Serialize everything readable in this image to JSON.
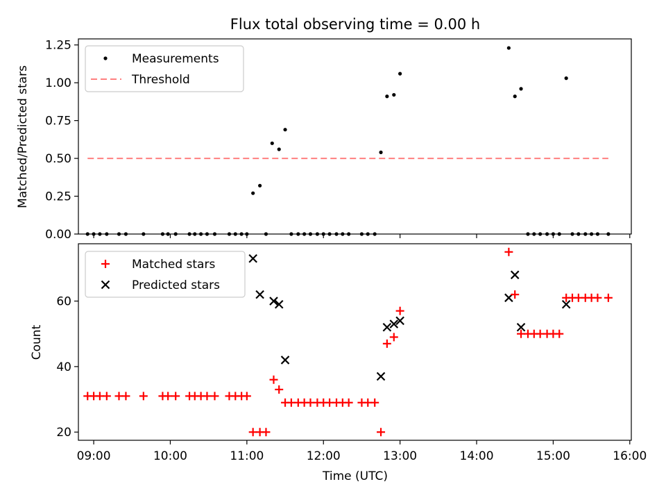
{
  "title": "Flux total observing time = 0.00 h",
  "colors": {
    "matched": "#ff0000",
    "predicted": "#000000",
    "threshold": "#ff7f7f",
    "measure": "#000000"
  },
  "chart_data": [
    {
      "type": "scatter",
      "title": "Flux total observing time = 0.00 h",
      "ylabel": "Matched/Predicted stars",
      "xlabel": "",
      "xlim": [
        8.8,
        16.02
      ],
      "ylim": [
        0,
        1.29
      ],
      "yticks": [
        0,
        0.25,
        0.5,
        0.75,
        1.0,
        1.25
      ],
      "ytick_labels": [
        "0.00",
        "0.25",
        "0.50",
        "0.75",
        "1.00",
        "1.25"
      ],
      "xticks": [
        9,
        10,
        11,
        12,
        13,
        14,
        15,
        16
      ],
      "legend": {
        "position": "upper-left",
        "entries": [
          "Measurements",
          "Threshold"
        ]
      },
      "threshold": {
        "name": "Threshold",
        "x": [
          8.92,
          15.72
        ],
        "y": 0.5
      },
      "series": [
        {
          "name": "Measurements",
          "x": [
            8.92,
            9.0,
            9.08,
            9.17,
            9.33,
            9.42,
            9.65,
            9.9,
            9.97,
            10.07,
            10.25,
            10.32,
            10.4,
            10.48,
            10.58,
            10.77,
            10.85,
            10.93,
            11.0,
            11.08,
            11.17,
            11.25,
            11.33,
            11.42,
            11.5,
            11.58,
            11.67,
            11.75,
            11.83,
            11.92,
            12.0,
            12.08,
            12.17,
            12.25,
            12.33,
            12.5,
            12.58,
            12.67,
            12.75,
            12.83,
            12.92,
            13.0,
            14.42,
            14.5,
            14.58,
            14.67,
            14.75,
            14.83,
            14.92,
            15.0,
            15.08,
            15.17,
            15.25,
            15.33,
            15.42,
            15.5,
            15.58,
            15.72
          ],
          "y": [
            0,
            0,
            0,
            0,
            0,
            0,
            0,
            0,
            0,
            0,
            0,
            0,
            0,
            0,
            0,
            0,
            0,
            0,
            0,
            0.27,
            0.32,
            0,
            0.6,
            0.56,
            0.69,
            0,
            0,
            0,
            0,
            0,
            0,
            0,
            0,
            0,
            0,
            0,
            0,
            0,
            0.54,
            0.91,
            0.92,
            1.06,
            1.23,
            0.91,
            0.96,
            0,
            0,
            0,
            0,
            0,
            0,
            1.03,
            0,
            0,
            0,
            0,
            0,
            0
          ]
        }
      ]
    },
    {
      "type": "scatter",
      "title": "",
      "ylabel": "Count",
      "xlabel": "Time (UTC)",
      "xlim": [
        8.8,
        16.02
      ],
      "ylim": [
        17.5,
        77.5
      ],
      "yticks": [
        20,
        40,
        60
      ],
      "ytick_labels": [
        "20",
        "40",
        "60"
      ],
      "xticks": [
        9,
        10,
        11,
        12,
        13,
        14,
        15,
        16
      ],
      "xtick_labels": [
        "09:00",
        "10:00",
        "11:00",
        "12:00",
        "13:00",
        "14:00",
        "15:00",
        "16:00"
      ],
      "legend": {
        "position": "upper-left",
        "entries": [
          "Matched stars",
          "Predicted stars"
        ]
      },
      "series": [
        {
          "name": "Matched stars",
          "marker": "plus",
          "x": [
            8.92,
            9.0,
            9.08,
            9.17,
            9.33,
            9.42,
            9.65,
            9.9,
            9.97,
            10.07,
            10.25,
            10.32,
            10.4,
            10.48,
            10.58,
            10.77,
            10.85,
            10.93,
            11.0,
            11.08,
            11.17,
            11.25,
            11.35,
            11.42,
            11.5,
            11.58,
            11.67,
            11.75,
            11.83,
            11.92,
            12.0,
            12.08,
            12.17,
            12.25,
            12.33,
            12.5,
            12.58,
            12.67,
            12.75,
            12.83,
            12.92,
            13.0,
            14.42,
            14.5,
            14.58,
            14.67,
            14.75,
            14.83,
            14.92,
            15.0,
            15.08,
            15.17,
            15.25,
            15.33,
            15.42,
            15.5,
            15.58,
            15.72
          ],
          "y": [
            31,
            31,
            31,
            31,
            31,
            31,
            31,
            31,
            31,
            31,
            31,
            31,
            31,
            31,
            31,
            31,
            31,
            31,
            31,
            20,
            20,
            20,
            36,
            33,
            29,
            29,
            29,
            29,
            29,
            29,
            29,
            29,
            29,
            29,
            29,
            29,
            29,
            29,
            20,
            47,
            49,
            57,
            75,
            62,
            50,
            50,
            50,
            50,
            50,
            50,
            50,
            61,
            61,
            61,
            61,
            61,
            61,
            61
          ]
        },
        {
          "name": "Predicted stars",
          "marker": "x",
          "x": [
            11.08,
            11.17,
            11.35,
            11.42,
            11.5,
            12.75,
            12.83,
            12.92,
            13.0,
            14.42,
            14.5,
            14.58,
            15.17
          ],
          "y": [
            73,
            62,
            60,
            59,
            42,
            37,
            52,
            53,
            54,
            61,
            68,
            52,
            59
          ]
        }
      ]
    }
  ]
}
